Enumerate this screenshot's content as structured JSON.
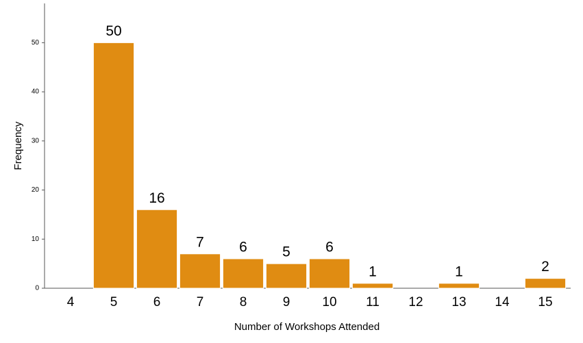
{
  "chart_data": {
    "type": "bar",
    "x_label": "Number of Workshops Attended",
    "y_label": "Frequency",
    "categories": [
      "4",
      "5",
      "6",
      "7",
      "8",
      "9",
      "10",
      "11",
      "12",
      "13",
      "14",
      "15"
    ],
    "values": [
      null,
      50,
      16,
      7,
      6,
      5,
      6,
      1,
      null,
      1,
      null,
      2
    ],
    "color": "#e08c12",
    "ylim": [
      0,
      58
    ],
    "yticks": [
      0,
      10,
      20,
      30,
      40,
      50
    ],
    "grid": false
  }
}
